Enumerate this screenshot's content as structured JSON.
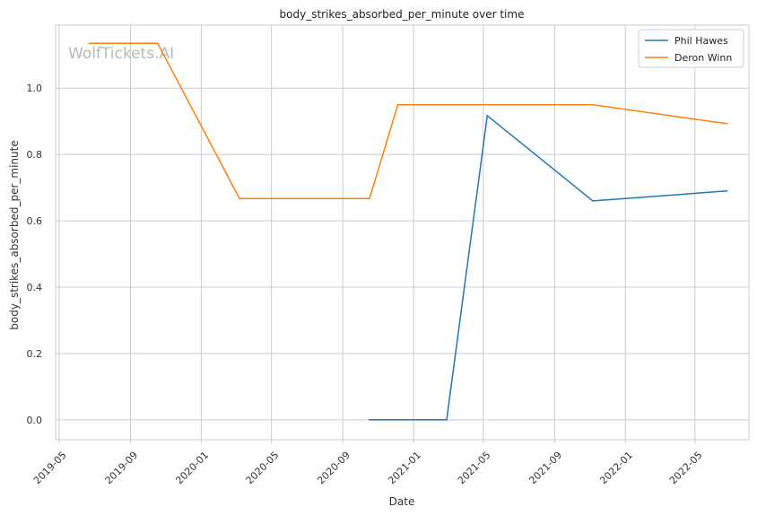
{
  "chart_data": {
    "type": "line",
    "title": "body_strikes_absorbed_per_minute over time",
    "xlabel": "Date",
    "ylabel": "body_strikes_absorbed_per_minute",
    "watermark": "WolfTickets.AI",
    "x_ticks": [
      "2019-05",
      "2019-09",
      "2020-01",
      "2020-05",
      "2020-09",
      "2021-01",
      "2021-05",
      "2021-09",
      "2022-01",
      "2022-05"
    ],
    "y_ticks": [
      "0.0",
      "0.2",
      "0.4",
      "0.6",
      "0.8",
      "1.0"
    ],
    "xlim": [
      "2019-04-25",
      "2022-08-02"
    ],
    "ylim": [
      -0.06,
      1.19
    ],
    "grid": true,
    "legend_position": "top-right",
    "series": [
      {
        "name": "Phil Hawes",
        "color": "#1f77b4",
        "points": [
          {
            "x": "2020-10-17",
            "y": 0.0
          },
          {
            "x": "2021-02-27",
            "y": 0.0
          },
          {
            "x": "2021-05-08",
            "y": 0.917
          },
          {
            "x": "2021-11-06",
            "y": 0.66
          },
          {
            "x": "2022-06-25",
            "y": 0.69
          }
        ]
      },
      {
        "name": "Deron Winn",
        "color": "#ff7f0e",
        "points": [
          {
            "x": "2019-06-22",
            "y": 1.135
          },
          {
            "x": "2019-10-18",
            "y": 1.135
          },
          {
            "x": "2020-03-07",
            "y": 0.667
          },
          {
            "x": "2020-10-17",
            "y": 0.667
          },
          {
            "x": "2020-12-05",
            "y": 0.95
          },
          {
            "x": "2021-11-06",
            "y": 0.95
          },
          {
            "x": "2022-06-25",
            "y": 0.893
          }
        ]
      }
    ]
  }
}
